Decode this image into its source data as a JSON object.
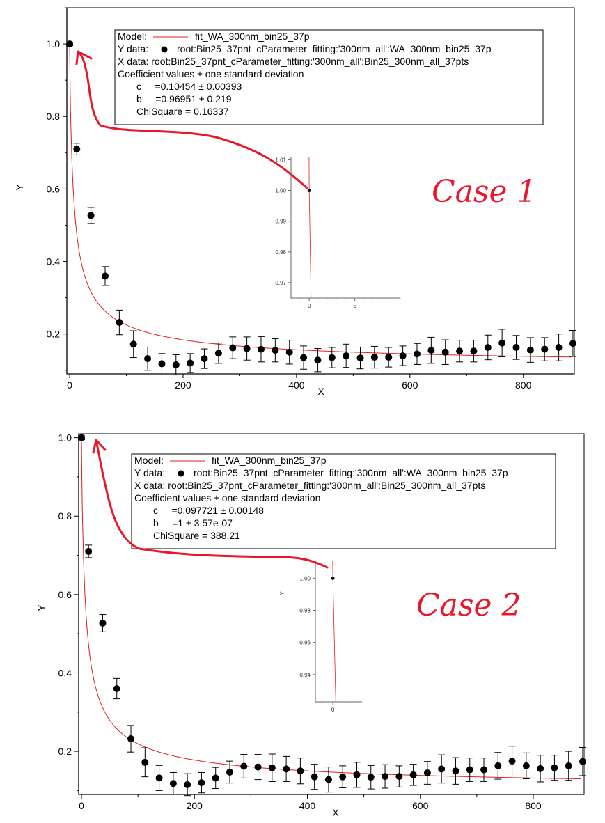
{
  "colors": {
    "fit": "#e0201c",
    "points": "#000000",
    "annotation": "#e8182a",
    "frame": "#000000"
  },
  "chart_data": [
    {
      "type": "scatter",
      "xlabel": "X",
      "ylabel": "Y",
      "xlim": [
        -5,
        890
      ],
      "ylim": [
        0.09,
        1.1
      ],
      "xticks": [
        "0",
        "200",
        "400",
        "600",
        "800"
      ],
      "yticks": [
        "0.2",
        "0.4",
        "0.6",
        "0.8",
        "1.0"
      ],
      "annotation_text": "Case 1",
      "legend": {
        "position": "top-center",
        "lines": [
          "Model:",
          "fit_WA_300nm_bin25_37p",
          "Y data:",
          "root:Bin25_37pnt_cParameter_fitting:'300nm_all':WA_300nm_bin25_37p",
          "X data: root:Bin25_37pnt_cParameter_fitting:'300nm_all':Bin25_300nm_all_37pts",
          "Coefficient values ± one standard deviation",
          "c     =0.10454 ± 0.00393",
          "b     =0.96951 ± 0.219",
          "ChiSquare = 0.16337"
        ]
      },
      "fit": {
        "c": 0.10454,
        "b": 0.96951
      },
      "series": [
        {
          "x": [
            0,
            12.5,
            37.5,
            62.5,
            87.5,
            112.5,
            137.5,
            162.5,
            187.5,
            212.5,
            237.5,
            262.5,
            287.5,
            312.5,
            337.5,
            362.5,
            387.5,
            412.5,
            437.5,
            462.5,
            487.5,
            512.5,
            537.5,
            562.5,
            587.5,
            612.5,
            637.5,
            662.5,
            687.5,
            712.5,
            737.5,
            762.5,
            787.5,
            812.5,
            837.5,
            862.5,
            887.5
          ],
          "y": [
            1.0,
            0.71,
            0.527,
            0.36,
            0.232,
            0.172,
            0.132,
            0.118,
            0.115,
            0.12,
            0.132,
            0.147,
            0.162,
            0.16,
            0.158,
            0.155,
            0.15,
            0.135,
            0.128,
            0.135,
            0.14,
            0.134,
            0.136,
            0.136,
            0.14,
            0.145,
            0.155,
            0.15,
            0.153,
            0.153,
            0.163,
            0.175,
            0.163,
            0.156,
            0.158,
            0.163,
            0.174
          ],
          "err": [
            0.005,
            0.016,
            0.022,
            0.026,
            0.034,
            0.037,
            0.032,
            0.028,
            0.028,
            0.026,
            0.027,
            0.028,
            0.03,
            0.032,
            0.035,
            0.032,
            0.033,
            0.032,
            0.032,
            0.028,
            0.032,
            0.03,
            0.03,
            0.027,
            0.027,
            0.029,
            0.036,
            0.034,
            0.03,
            0.03,
            0.034,
            0.038,
            0.033,
            0.034,
            0.032,
            0.037,
            0.036
          ]
        }
      ],
      "inset": {
        "xlim": [
          -2,
          10
        ],
        "ylim": [
          0.965,
          1.011
        ],
        "xticks": [
          "0",
          "5"
        ],
        "yticks": [
          "0.97",
          "0.98",
          "0.99",
          "1.00",
          "1.01"
        ],
        "ylabel": "",
        "point": {
          "x": 0,
          "y": 1.0
        }
      }
    },
    {
      "type": "scatter",
      "xlabel": "X",
      "ylabel": "Y",
      "xlim": [
        -5,
        890
      ],
      "ylim": [
        0.09,
        1.01
      ],
      "xticks": [
        "0",
        "200",
        "400",
        "600",
        "800"
      ],
      "yticks": [
        "0.2",
        "0.4",
        "0.6",
        "0.8",
        "1.0"
      ],
      "annotation_text": "Case 2",
      "legend": {
        "position": "top-center",
        "lines": [
          "Model:",
          "fit_WA_300nm_bin25_37p",
          "Y data:",
          "root:Bin25_37pnt_cParameter_fitting:'300nm_all':WA_300nm_bin25_37p",
          "X data: root:Bin25_37pnt_cParameter_fitting:'300nm_all':Bin25_300nm_all_37pts",
          "Coefficient values ± one standard deviation",
          "c     =0.097721 ± 0.00148",
          "b     =1 ± 3.57e-07",
          "ChiSquare = 388.21"
        ]
      },
      "fit": {
        "c": 0.097721,
        "b": 1.0
      },
      "series": [
        {
          "x": [
            0,
            12.5,
            37.5,
            62.5,
            87.5,
            112.5,
            137.5,
            162.5,
            187.5,
            212.5,
            237.5,
            262.5,
            287.5,
            312.5,
            337.5,
            362.5,
            387.5,
            412.5,
            437.5,
            462.5,
            487.5,
            512.5,
            537.5,
            562.5,
            587.5,
            612.5,
            637.5,
            662.5,
            687.5,
            712.5,
            737.5,
            762.5,
            787.5,
            812.5,
            837.5,
            862.5,
            887.5
          ],
          "y": [
            1.0,
            0.71,
            0.527,
            0.36,
            0.232,
            0.172,
            0.132,
            0.118,
            0.115,
            0.12,
            0.132,
            0.147,
            0.162,
            0.16,
            0.158,
            0.155,
            0.15,
            0.135,
            0.128,
            0.135,
            0.14,
            0.134,
            0.136,
            0.136,
            0.14,
            0.145,
            0.155,
            0.15,
            0.153,
            0.153,
            0.163,
            0.175,
            0.163,
            0.156,
            0.158,
            0.163,
            0.174
          ],
          "err": [
            0.005,
            0.016,
            0.022,
            0.026,
            0.034,
            0.037,
            0.032,
            0.028,
            0.028,
            0.026,
            0.027,
            0.028,
            0.03,
            0.032,
            0.035,
            0.032,
            0.033,
            0.032,
            0.032,
            0.028,
            0.032,
            0.03,
            0.03,
            0.027,
            0.027,
            0.029,
            0.036,
            0.034,
            0.03,
            0.03,
            0.034,
            0.038,
            0.033,
            0.034,
            0.032,
            0.037,
            0.036
          ]
        }
      ],
      "inset": {
        "xlim": [
          -1.5,
          2.5
        ],
        "ylim": [
          0.923,
          1.011
        ],
        "xticks": [
          "0"
        ],
        "yticks": [
          "0.94",
          "0.96",
          "0.98",
          "1.00"
        ],
        "ylabel": "Y",
        "point": {
          "x": 0,
          "y": 1.0
        }
      }
    }
  ]
}
